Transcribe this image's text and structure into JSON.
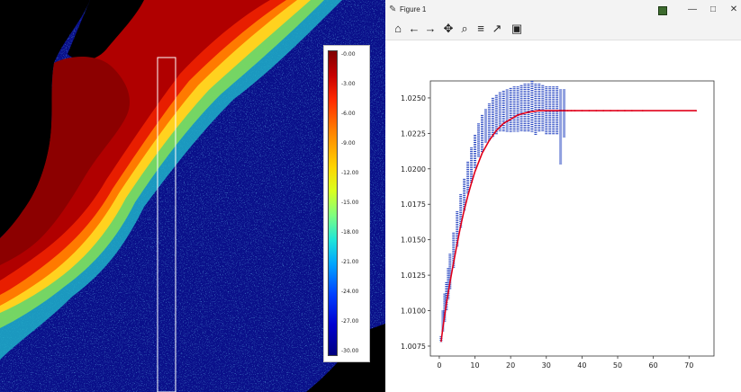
{
  "left_panel": {
    "colorbar_ticks": [
      "-0.00",
      "-3.00",
      "-6.00",
      "-9.00",
      "-12.00",
      "-15.00",
      "-18.00",
      "-21.00",
      "-24.00",
      "-27.00",
      "-30.00"
    ]
  },
  "window": {
    "title": "Figure 1",
    "minimize": "—",
    "maximize": "□",
    "close": "✕"
  },
  "toolbar": {
    "items": [
      {
        "name": "home-icon",
        "glyph": "⌂"
      },
      {
        "name": "back-icon",
        "glyph": "←"
      },
      {
        "name": "forward-icon",
        "glyph": "→"
      },
      {
        "name": "pan-icon",
        "glyph": "✥"
      },
      {
        "name": "zoom-icon",
        "glyph": "⌕"
      },
      {
        "name": "configure-subplots-icon",
        "glyph": "≡"
      },
      {
        "name": "edit-axis-icon",
        "glyph": "↗"
      },
      {
        "name": "save-icon",
        "glyph": "▣"
      }
    ]
  },
  "chart_data": {
    "type": "scatter",
    "title": "",
    "xlabel": "",
    "ylabel": "",
    "xlim": [
      -2.5,
      77
    ],
    "ylim": [
      1.0068,
      1.0262
    ],
    "xticks": [
      0,
      10,
      20,
      30,
      40,
      50,
      60,
      70
    ],
    "yticks": [
      1.0075,
      1.01,
      1.0125,
      1.015,
      1.0175,
      1.02,
      1.0225,
      1.025
    ],
    "ytick_labels": [
      "1.0075",
      "1.0100",
      "1.0125",
      "1.0150",
      "1.0175",
      "1.0200",
      "1.0225",
      "1.0250"
    ],
    "grid": false,
    "series": [
      {
        "type": "scatter",
        "color": "#1f3fbf",
        "x": [
          0.5,
          1,
          1.5,
          2,
          2.5,
          3,
          4,
          5,
          6,
          7,
          8,
          9,
          10,
          11,
          12,
          13,
          14,
          15,
          16,
          17,
          18,
          19,
          20,
          21,
          22,
          23,
          24,
          25,
          26,
          27,
          28,
          29,
          30,
          31,
          32,
          33,
          34,
          35
        ],
        "y_min": [
          1.0078,
          1.0085,
          1.0092,
          1.01,
          1.0108,
          1.0115,
          1.013,
          1.0145,
          1.0158,
          1.017,
          1.0182,
          1.019,
          1.02,
          1.0208,
          1.0212,
          1.0218,
          1.022,
          1.0222,
          1.0224,
          1.0226,
          1.0226,
          1.0226,
          1.0226,
          1.0226,
          1.0226,
          1.0226,
          1.0226,
          1.0226,
          1.0226,
          1.0224,
          1.0226,
          1.0226,
          1.0224,
          1.0224,
          1.0224,
          1.0224,
          1.0203,
          1.0222
        ],
        "y_max": [
          1.0082,
          1.01,
          1.0112,
          1.012,
          1.013,
          1.014,
          1.0155,
          1.017,
          1.0182,
          1.0193,
          1.0205,
          1.0215,
          1.0224,
          1.0232,
          1.0238,
          1.0242,
          1.0246,
          1.025,
          1.0252,
          1.0254,
          1.0255,
          1.0256,
          1.0257,
          1.0258,
          1.0258,
          1.0259,
          1.026,
          1.026,
          1.0262,
          1.026,
          1.026,
          1.0259,
          1.0258,
          1.0258,
          1.0258,
          1.0258,
          1.0256,
          1.0256
        ]
      },
      {
        "type": "line",
        "color": "#e0001a",
        "x": [
          0.5,
          1,
          2,
          3,
          4,
          5,
          6,
          7,
          8,
          9,
          10,
          12,
          14,
          16,
          18,
          20,
          22,
          25,
          28,
          30,
          33,
          35,
          38,
          40,
          45,
          50,
          55,
          60,
          72
        ],
        "y": [
          1.0078,
          1.0088,
          1.0105,
          1.012,
          1.0134,
          1.0147,
          1.016,
          1.0171,
          1.0181,
          1.019,
          1.0198,
          1.0211,
          1.022,
          1.0227,
          1.0232,
          1.0235,
          1.0238,
          1.024,
          1.0241,
          1.0241,
          1.0241,
          1.0241,
          1.0241,
          1.0241,
          1.0241,
          1.0241,
          1.0241,
          1.0241,
          1.0241
        ]
      }
    ],
    "outliers": {
      "x": [
        36,
        37,
        38,
        40,
        42,
        44,
        46,
        48,
        50,
        52,
        54,
        57,
        72
      ],
      "y": [
        1.0241,
        1.0241,
        1.0241,
        1.0241,
        1.0241,
        1.0241,
        1.0241,
        1.0241,
        1.0241,
        1.0241,
        1.0241,
        1.0241,
        1.0241
      ]
    }
  }
}
